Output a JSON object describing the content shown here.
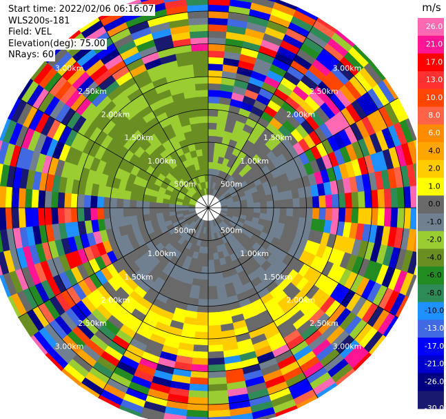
{
  "header": {
    "start_time": "Start time: 2022/02/06 06:16:07",
    "station": "WLS200s-181",
    "field": "Field: VEL",
    "elevation": "Elevation(deg): 75.00",
    "nrays": "NRays: 60"
  },
  "colorbar": {
    "unit": "m/s",
    "ticks": [
      "26.0",
      "21.0",
      "17.0",
      "13.0",
      "10.0",
      "8.0",
      "6.0",
      "4.0",
      "2.0",
      "1.0",
      "0.0",
      "-1.0",
      "-2.0",
      "-4.0",
      "-6.0",
      "-8.0",
      "-10.0",
      "-13.0",
      "-17.0",
      "-21.0",
      "-26.0",
      "-30.0"
    ],
    "colors": [
      "#ff69b4",
      "#ff1493",
      "#ff0000",
      "#ff3030",
      "#ff4500",
      "#ff6347",
      "#ff8c00",
      "#ffa500",
      "#ffcc00",
      "#ffff00",
      "#696969",
      "#708090",
      "#9acd32",
      "#6b8e23",
      "#228b22",
      "#2e8b57",
      "#1e90ff",
      "#4169e1",
      "#0000ff",
      "#0000cd",
      "#000080",
      "#191970"
    ]
  },
  "chart_data": {
    "type": "heatmap",
    "projection": "polar PPI",
    "field": "VEL",
    "units": "m/s",
    "nrays": 60,
    "range_rings_km": [
      0.5,
      1.0,
      1.5,
      2.0,
      2.5,
      3.0
    ],
    "ring_labels": [
      "500m",
      "1.00km",
      "1.50km",
      "2.00km",
      "2.50km",
      "3.00km"
    ],
    "max_range_km": 3.35,
    "gate_spacing_km": 0.1,
    "grid": true
  }
}
